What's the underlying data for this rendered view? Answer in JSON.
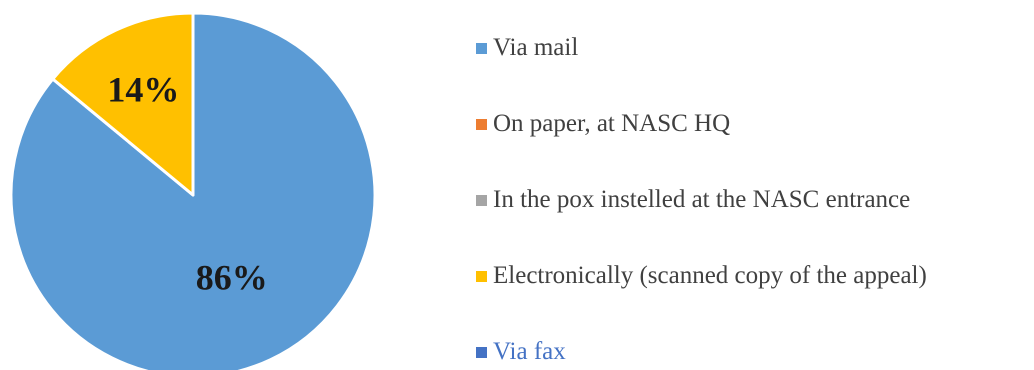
{
  "chart_data": {
    "type": "pie",
    "title": "",
    "start_angle_deg": 0,
    "direction": "clockwise",
    "slices": [
      {
        "name": "Via mail",
        "value": 86,
        "label": "86%",
        "color": "#5B9BD5",
        "legend_text_color": "#404040"
      },
      {
        "name": "On paper, at NASC HQ",
        "value": 0,
        "label": "",
        "color": "#ED7D31",
        "legend_text_color": "#404040"
      },
      {
        "name": "In the pox instelled at the NASC entrance",
        "value": 0,
        "label": "",
        "color": "#A5A5A5",
        "legend_text_color": "#404040"
      },
      {
        "name": "Electronically (scanned copy of the appeal)",
        "value": 14,
        "label": "14%",
        "color": "#FFC000",
        "legend_text_color": "#404040"
      },
      {
        "name": "Via fax",
        "value": 0,
        "label": "",
        "color": "#4472C4",
        "legend_text_color": "#4472C4"
      }
    ],
    "legend_position": "right"
  }
}
